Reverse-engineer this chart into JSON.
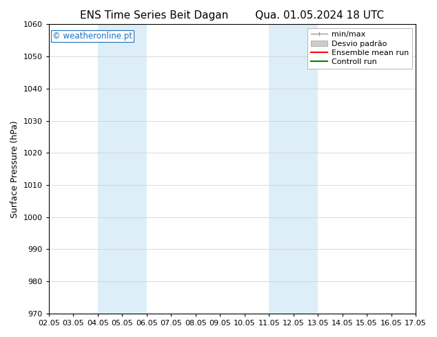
{
  "title_left": "ENS Time Series Beit Dagan",
  "title_right": "Qua. 01.05.2024 18 UTC",
  "ylabel": "Surface Pressure (hPa)",
  "ylim": [
    970,
    1060
  ],
  "yticks": [
    970,
    980,
    990,
    1000,
    1010,
    1020,
    1030,
    1040,
    1050,
    1060
  ],
  "xlim": [
    0,
    15
  ],
  "xtick_labels": [
    "02.05",
    "03.05",
    "04.05",
    "05.05",
    "06.05",
    "07.05",
    "08.05",
    "09.05",
    "10.05",
    "11.05",
    "12.05",
    "13.05",
    "14.05",
    "15.05",
    "16.05",
    "17.05"
  ],
  "xtick_positions": [
    0,
    1,
    2,
    3,
    4,
    5,
    6,
    7,
    8,
    9,
    10,
    11,
    12,
    13,
    14,
    15
  ],
  "shaded_regions": [
    {
      "xmin": 2,
      "xmax": 4,
      "color": "#ddeef9"
    },
    {
      "xmin": 9,
      "xmax": 11,
      "color": "#ddeef9"
    }
  ],
  "watermark_text": "© weatheronline.pt",
  "watermark_color": "#1a6fbf",
  "background_color": "#ffffff",
  "legend_label_minmax": "min/max",
  "legend_label_std": "Desvio padrão",
  "legend_label_ensemble": "Ensemble mean run",
  "legend_label_control": "Controll run",
  "title_fontsize": 11,
  "axis_label_fontsize": 9,
  "tick_fontsize": 8,
  "legend_fontsize": 8
}
